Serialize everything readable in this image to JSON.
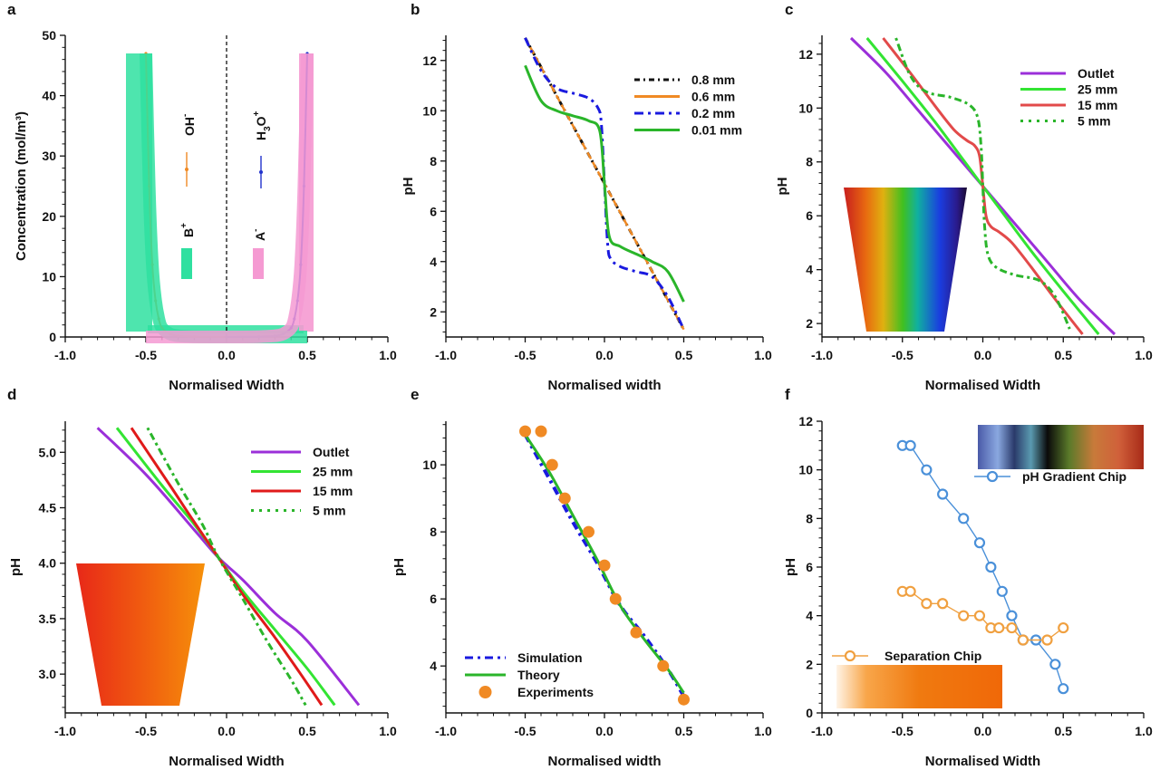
{
  "chart_data": [
    {
      "panel": "a",
      "type": "line",
      "xlabel": "Normalised Width",
      "ylabel": "Concentration (mol/m³)",
      "xlim": [
        -1.0,
        1.0
      ],
      "ylim": [
        0,
        50
      ],
      "xticks": [
        -1.0,
        -0.5,
        0.0,
        0.5,
        1.0
      ],
      "yticks": [
        0,
        10,
        20,
        30,
        40,
        50
      ],
      "xticklabels": [
        "-1.0",
        "-0.5",
        "0.0",
        "0.5",
        "1.0"
      ],
      "yticklabels": [
        "0",
        "10",
        "20",
        "30",
        "40",
        "50"
      ],
      "series": [
        {
          "name": "OH⁻",
          "color": "#f08a24",
          "x": [
            -0.5,
            -0.48,
            -0.46,
            -0.44,
            -0.42,
            -0.4,
            -0.35,
            -0.3,
            -0.2,
            0.0
          ],
          "y": [
            47,
            25,
            12,
            6,
            3,
            1.5,
            0.5,
            0.2,
            0.05,
            0
          ]
        },
        {
          "name": "H₃O⁺",
          "color": "#2233cc",
          "x": [
            0.0,
            0.2,
            0.3,
            0.35,
            0.4,
            0.42,
            0.44,
            0.46,
            0.48,
            0.5
          ],
          "y": [
            0,
            0.05,
            0.2,
            0.5,
            1.5,
            3,
            6,
            12,
            25,
            47
          ]
        },
        {
          "name": "B⁺",
          "color": "#2fe0a0",
          "x": [
            -0.5,
            -0.48,
            -0.46,
            -0.44,
            -0.42,
            -0.4,
            -0.35,
            -0.3,
            -0.2,
            0.0,
            0.5
          ],
          "y": [
            47,
            25,
            12,
            6,
            3,
            1.5,
            0.5,
            0.2,
            0.05,
            0,
            0
          ]
        },
        {
          "name": "A⁻",
          "color": "#f59ad2",
          "x": [
            -0.5,
            0.0,
            0.2,
            0.3,
            0.35,
            0.4,
            0.42,
            0.44,
            0.46,
            0.48,
            0.5
          ],
          "y": [
            0,
            0,
            0.05,
            0.2,
            0.5,
            1.5,
            3,
            6,
            12,
            25,
            47
          ]
        }
      ]
    },
    {
      "panel": "b",
      "type": "line",
      "xlabel": "Normalised width",
      "ylabel": "pH",
      "xlim": [
        -1.0,
        1.0
      ],
      "ylim": [
        1,
        13
      ],
      "xticks": [
        -1.0,
        -0.5,
        0.0,
        0.5,
        1.0
      ],
      "yticks": [
        2,
        4,
        6,
        8,
        10,
        12
      ],
      "xticklabels": [
        "-1.0",
        "-0.5",
        "0.0",
        "0.5",
        "1.0"
      ],
      "yticklabels": [
        "2",
        "4",
        "6",
        "8",
        "10",
        "12"
      ],
      "series": [
        {
          "name": "0.8 mm",
          "color": "#111111",
          "x": [
            -0.5,
            0.5
          ],
          "y": [
            12.9,
            1.3
          ]
        },
        {
          "name": "0.6 mm",
          "color": "#f08a24",
          "x": [
            -0.5,
            0.5
          ],
          "y": [
            12.9,
            1.3
          ]
        },
        {
          "name": "0.2 mm",
          "color": "#1a1adf",
          "x": [
            -0.5,
            -0.4,
            -0.3,
            -0.2,
            -0.1,
            -0.04,
            -0.02,
            0,
            0.02,
            0.04,
            0.1,
            0.2,
            0.3,
            0.4,
            0.5
          ],
          "y": [
            12.9,
            11.6,
            10.9,
            10.7,
            10.5,
            10.1,
            9.5,
            7.1,
            4.7,
            4.1,
            3.8,
            3.6,
            3.4,
            2.6,
            1.3
          ]
        },
        {
          "name": "0.01 mm",
          "color": "#2ab52a",
          "x": [
            -0.5,
            -0.4,
            -0.3,
            -0.2,
            -0.1,
            -0.03,
            0,
            0.03,
            0.1,
            0.2,
            0.3,
            0.4,
            0.5
          ],
          "y": [
            11.8,
            10.4,
            10.0,
            9.8,
            9.6,
            9.2,
            7.1,
            5.0,
            4.6,
            4.3,
            4.0,
            3.6,
            2.4
          ]
        }
      ]
    },
    {
      "panel": "c",
      "type": "line",
      "xlabel": "Normalised Width",
      "ylabel": "pH",
      "xlim": [
        -1.0,
        1.0
      ],
      "ylim": [
        1.5,
        12.7
      ],
      "xticks": [
        -1.0,
        -0.5,
        0.0,
        0.5,
        1.0
      ],
      "yticks": [
        2,
        4,
        6,
        8,
        10,
        12
      ],
      "xticklabels": [
        "-1.0",
        "-0.5",
        "0.0",
        "0.5",
        "1.0"
      ],
      "yticklabels": [
        "2",
        "4",
        "6",
        "8",
        "10",
        "12"
      ],
      "series": [
        {
          "name": "Outlet",
          "color": "#9b2fd9",
          "x": [
            -0.82,
            -0.6,
            -0.4,
            -0.2,
            0,
            0.2,
            0.4,
            0.6,
            0.82
          ],
          "y": [
            12.6,
            11.3,
            9.9,
            8.5,
            7.1,
            5.7,
            4.3,
            2.9,
            1.6
          ]
        },
        {
          "name": "25 mm",
          "color": "#33e433",
          "x": [
            -0.72,
            -0.5,
            -0.3,
            -0.1,
            0,
            0.1,
            0.3,
            0.5,
            0.72
          ],
          "y": [
            12.6,
            11.0,
            9.5,
            7.9,
            7.1,
            6.3,
            4.7,
            3.2,
            1.6
          ]
        },
        {
          "name": "15 mm",
          "color": "#e24a4a",
          "x": [
            -0.62,
            -0.45,
            -0.3,
            -0.18,
            -0.1,
            -0.05,
            -0.02,
            0,
            0.02,
            0.05,
            0.1,
            0.18,
            0.3,
            0.45,
            0.62
          ],
          "y": [
            12.6,
            11.3,
            10.1,
            9.2,
            8.8,
            8.6,
            8.2,
            7.1,
            6.0,
            5.6,
            5.4,
            5.0,
            4.1,
            2.9,
            1.6
          ]
        },
        {
          "name": "5 mm",
          "color": "#2ab52a",
          "dash": true,
          "x": [
            -0.54,
            -0.45,
            -0.35,
            -0.2,
            -0.08,
            -0.03,
            -0.01,
            0,
            0.01,
            0.03,
            0.08,
            0.2,
            0.35,
            0.45,
            0.54
          ],
          "y": [
            12.6,
            11.2,
            10.6,
            10.4,
            10.1,
            9.6,
            8.5,
            7.1,
            5.7,
            4.6,
            4.1,
            3.8,
            3.6,
            3.0,
            1.8
          ]
        }
      ]
    },
    {
      "panel": "d",
      "type": "line",
      "xlabel": "Normalised Width",
      "ylabel": "pH",
      "xlim": [
        -1.0,
        1.0
      ],
      "ylim": [
        2.65,
        5.28
      ],
      "xticks": [
        -1.0,
        -0.5,
        0.0,
        0.5,
        1.0
      ],
      "yticks": [
        3.0,
        3.5,
        4.0,
        4.5,
        5.0
      ],
      "xticklabels": [
        "-1.0",
        "-0.5",
        "0.0",
        "0.5",
        "1.0"
      ],
      "yticklabels": [
        "3.0",
        "3.5",
        "4.0",
        "4.5",
        "5.0"
      ],
      "series": [
        {
          "name": "Outlet",
          "color": "#9b2fd9",
          "x": [
            -0.8,
            -0.5,
            -0.2,
            -0.05,
            0.1,
            0.3,
            0.5,
            0.82
          ],
          "y": [
            5.22,
            4.8,
            4.3,
            4.05,
            3.85,
            3.55,
            3.3,
            2.72
          ]
        },
        {
          "name": "25 mm",
          "color": "#33e433",
          "x": [
            -0.68,
            -0.4,
            -0.2,
            -0.05,
            0.1,
            0.3,
            0.5,
            0.67
          ],
          "y": [
            5.22,
            4.7,
            4.35,
            4.05,
            3.75,
            3.4,
            3.05,
            2.72
          ]
        },
        {
          "name": "15 mm",
          "color": "#e01a1a",
          "x": [
            -0.59,
            -0.35,
            -0.2,
            -0.05,
            0.1,
            0.3,
            0.45,
            0.59
          ],
          "y": [
            5.22,
            4.7,
            4.37,
            4.05,
            3.72,
            3.33,
            3.02,
            2.72
          ]
        },
        {
          "name": "5 mm",
          "color": "#2ab52a",
          "dash": true,
          "x": [
            -0.49,
            -0.3,
            -0.15,
            -0.05,
            0.1,
            0.25,
            0.4,
            0.49
          ],
          "y": [
            5.22,
            4.72,
            4.35,
            4.05,
            3.68,
            3.3,
            2.95,
            2.72
          ]
        }
      ]
    },
    {
      "panel": "e",
      "type": "line",
      "xlabel": "Normalised width",
      "ylabel": "pH",
      "xlim": [
        -1.0,
        1.0
      ],
      "ylim": [
        2.6,
        11.3
      ],
      "xticks": [
        -1.0,
        -0.5,
        0.0,
        0.5,
        1.0
      ],
      "yticks": [
        4,
        6,
        8,
        10
      ],
      "xticklabels": [
        "-1.0",
        "-0.5",
        "0.0",
        "0.5",
        "1.0"
      ],
      "yticklabels": [
        "4",
        "6",
        "8",
        "10"
      ],
      "series": [
        {
          "name": "Simulation",
          "color": "#1a1adf",
          "x": [
            -0.5,
            -0.35,
            -0.2,
            -0.05,
            0.1,
            0.25,
            0.4,
            0.5
          ],
          "y": [
            10.9,
            9.6,
            8.3,
            7.1,
            5.8,
            4.9,
            3.9,
            3.1
          ]
        },
        {
          "name": "Theory",
          "color": "#2ab52a",
          "x": [
            -0.5,
            -0.35,
            -0.2,
            -0.05,
            0.1,
            0.25,
            0.4,
            0.5
          ],
          "y": [
            10.9,
            9.8,
            8.5,
            7.2,
            5.8,
            4.8,
            3.9,
            3.2
          ]
        },
        {
          "name": "Experiments",
          "color": "#f08a24",
          "type": "scatter",
          "x": [
            -0.5,
            -0.4,
            -0.33,
            -0.25,
            -0.1,
            0.0,
            0.07,
            0.2,
            0.37,
            0.5
          ],
          "y": [
            11,
            11,
            10,
            9,
            8,
            7,
            6,
            5,
            4,
            3
          ]
        }
      ]
    },
    {
      "panel": "f",
      "type": "line",
      "xlabel": "Normalised Width",
      "ylabel": "pH",
      "xlim": [
        -1.0,
        1.0
      ],
      "ylim": [
        0,
        12
      ],
      "xticks": [
        -1.0,
        -0.5,
        0.0,
        0.5,
        1.0
      ],
      "yticks": [
        0,
        2,
        4,
        6,
        8,
        10,
        12
      ],
      "xticklabels": [
        "-1.0",
        "-0.5",
        "0.0",
        "0.5",
        "1.0"
      ],
      "yticklabels": [
        "0",
        "2",
        "4",
        "6",
        "8",
        "10",
        "12"
      ],
      "series": [
        {
          "name": "pH Gradient Chip",
          "color": "#4a90d9",
          "x": [
            -0.5,
            -0.45,
            -0.35,
            -0.25,
            -0.12,
            -0.02,
            0.05,
            0.12,
            0.18,
            0.25,
            0.33,
            0.45,
            0.5
          ],
          "y": [
            11,
            11,
            10,
            9,
            8,
            7,
            6,
            5,
            4,
            3,
            3,
            2,
            1
          ]
        },
        {
          "name": "Separation Chip",
          "color": "#f0a040",
          "x": [
            -0.5,
            -0.45,
            -0.35,
            -0.25,
            -0.12,
            -0.02,
            0.05,
            0.1,
            0.18,
            0.25,
            0.4,
            0.5
          ],
          "y": [
            5,
            5,
            4.5,
            4.5,
            4,
            4,
            3.5,
            3.5,
            3.5,
            3,
            3,
            3.5
          ]
        }
      ]
    }
  ],
  "labels": {
    "a": {
      "panel": "a",
      "oh": "OH",
      "oh_sup": "-",
      "h3o_h": "H",
      "h3o_sub": "3",
      "h3o_o": "O",
      "h3o_sup": "+",
      "b": "B",
      "b_sup": "+",
      "a": "A",
      "a_sup": "-"
    },
    "b": {
      "panel": "b"
    },
    "c": {
      "panel": "c"
    },
    "d": {
      "panel": "d"
    },
    "e": {
      "panel": "e"
    },
    "f": {
      "panel": "f"
    }
  }
}
